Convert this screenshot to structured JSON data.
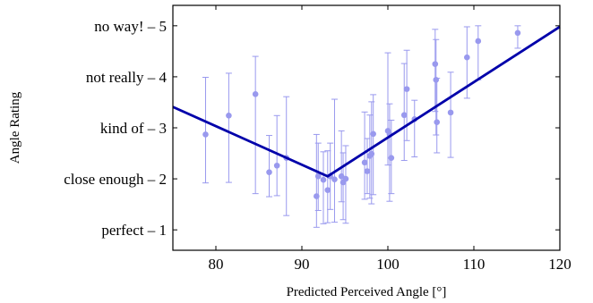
{
  "chart_data": {
    "type": "scatter",
    "title": "",
    "xlabel": "Predicted Perceived Angle [°]",
    "ylabel": "Angle Rating",
    "xlim": [
      75,
      120
    ],
    "ylim": [
      0.6,
      5.4
    ],
    "x_ticks": [
      80,
      90,
      100,
      110,
      120
    ],
    "y_ticks": [
      {
        "value": 1,
        "label": "perfect – 1"
      },
      {
        "value": 2,
        "label": "close enough – 2"
      },
      {
        "value": 3,
        "label": "kind of – 3"
      },
      {
        "value": 4,
        "label": "not really – 4"
      },
      {
        "value": 5,
        "label": "no way! – 5"
      }
    ],
    "grid": false,
    "colors": {
      "points": "#9999ee",
      "fit": "#0000aa",
      "axes": "#000000"
    },
    "series": [
      {
        "type": "errorbar-scatter",
        "points": [
          {
            "x": 78.8,
            "y": 2.87,
            "low": 1.92,
            "high": 3.99
          },
          {
            "x": 81.5,
            "y": 3.24,
            "low": 1.93,
            "high": 4.07
          },
          {
            "x": 84.6,
            "y": 3.66,
            "low": 1.71,
            "high": 4.4
          },
          {
            "x": 86.2,
            "y": 2.13,
            "low": 1.65,
            "high": 2.85
          },
          {
            "x": 87.1,
            "y": 2.26,
            "low": 1.67,
            "high": 3.24
          },
          {
            "x": 88.2,
            "y": 2.41,
            "low": 1.28,
            "high": 3.61
          },
          {
            "x": 91.7,
            "y": 1.66,
            "low": 1.05,
            "high": 2.87
          },
          {
            "x": 91.9,
            "y": 2.05,
            "low": 1.38,
            "high": 2.7
          },
          {
            "x": 92.5,
            "y": 1.98,
            "low": 1.12,
            "high": 2.53
          },
          {
            "x": 93.0,
            "y": 1.78,
            "low": 1.14,
            "high": 2.55
          },
          {
            "x": 93.3,
            "y": 2.05,
            "low": 1.4,
            "high": 2.7
          },
          {
            "x": 93.8,
            "y": 1.99,
            "low": 1.15,
            "high": 3.56
          },
          {
            "x": 94.6,
            "y": 2.05,
            "low": 1.55,
            "high": 2.94
          },
          {
            "x": 94.8,
            "y": 1.93,
            "low": 1.2,
            "high": 2.51
          },
          {
            "x": 95.1,
            "y": 2.0,
            "low": 1.13,
            "high": 2.65
          },
          {
            "x": 97.3,
            "y": 2.32,
            "low": 1.6,
            "high": 3.31
          },
          {
            "x": 97.6,
            "y": 2.15,
            "low": 1.71,
            "high": 2.79
          },
          {
            "x": 97.9,
            "y": 2.45,
            "low": 1.62,
            "high": 3.25
          },
          {
            "x": 98.1,
            "y": 2.49,
            "low": 1.51,
            "high": 3.51
          },
          {
            "x": 98.3,
            "y": 2.88,
            "low": 1.69,
            "high": 3.65
          },
          {
            "x": 100.0,
            "y": 2.94,
            "low": 2.27,
            "high": 4.47
          },
          {
            "x": 100.2,
            "y": 2.87,
            "low": 1.56,
            "high": 3.47
          },
          {
            "x": 100.4,
            "y": 2.41,
            "low": 1.71,
            "high": 3.15
          },
          {
            "x": 101.9,
            "y": 3.25,
            "low": 2.36,
            "high": 4.26
          },
          {
            "x": 102.2,
            "y": 3.76,
            "low": 2.75,
            "high": 4.52
          },
          {
            "x": 103.1,
            "y": 3.17,
            "low": 2.43,
            "high": 3.54
          },
          {
            "x": 105.5,
            "y": 4.25,
            "low": 3.32,
            "high": 4.93
          },
          {
            "x": 105.6,
            "y": 3.94,
            "low": 2.86,
            "high": 4.73
          },
          {
            "x": 105.7,
            "y": 3.11,
            "low": 2.51,
            "high": 3.97
          },
          {
            "x": 107.3,
            "y": 3.3,
            "low": 2.42,
            "high": 4.09
          },
          {
            "x": 109.2,
            "y": 4.38,
            "low": 3.58,
            "high": 4.98
          },
          {
            "x": 110.5,
            "y": 4.7,
            "low": 3.94,
            "high": 5.0
          },
          {
            "x": 115.1,
            "y": 4.86,
            "low": 4.56,
            "high": 5.0
          }
        ]
      },
      {
        "type": "line",
        "x": [
          75,
          93,
          120
        ],
        "y": [
          3.41,
          2.05,
          4.98
        ]
      }
    ]
  }
}
